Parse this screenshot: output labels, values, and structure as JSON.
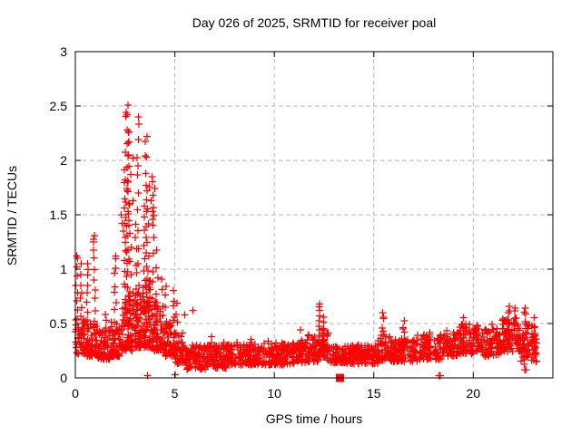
{
  "chart_data": {
    "type": "scatter",
    "title": "Day 026 of 2025, SRMTID for receiver poal",
    "xlabel": "GPS time / hours",
    "ylabel": "SRMTID / TECUs",
    "xlim": [
      0,
      24
    ],
    "ylim": [
      0,
      3
    ],
    "x_ticks": [
      0,
      5,
      10,
      15,
      20
    ],
    "x_tick_labels": [
      "0",
      "5",
      "10",
      "15",
      "20"
    ],
    "y_ticks": [
      0,
      0.5,
      1,
      1.5,
      2,
      2.5,
      3
    ],
    "y_tick_labels": [
      "0",
      "0.5",
      "1",
      "1.5",
      "2",
      "2.5",
      "3"
    ],
    "grid": true,
    "legend": "none",
    "marker": "plus",
    "marker_color": "#ff0000",
    "grid_color": "#b3b3b3",
    "border_color": "#000000",
    "background_color": "#ffffff",
    "notable_points": [
      [
        2.64,
        2.51
      ],
      [
        2.56,
        2.44
      ],
      [
        2.6,
        2.42
      ],
      [
        3.17,
        2.4
      ],
      [
        2.66,
        2.26
      ],
      [
        2.7,
        2.17
      ],
      [
        3.6,
        2.22
      ],
      [
        2.65,
        2.04
      ],
      [
        2.9,
        2.02
      ],
      [
        3.58,
        2.03
      ],
      [
        3.15,
        1.95
      ],
      [
        2.78,
        1.87
      ],
      [
        3.86,
        1.85
      ],
      [
        2.65,
        1.8
      ],
      [
        3.73,
        1.76
      ],
      [
        2.6,
        1.74
      ],
      [
        4.0,
        1.74
      ],
      [
        3.17,
        1.7
      ],
      [
        2.9,
        1.63
      ],
      [
        3.82,
        1.63
      ],
      [
        3.87,
        1.53
      ],
      [
        2.64,
        1.53
      ],
      [
        3.95,
        1.49
      ],
      [
        3.87,
        1.46
      ],
      [
        0.95,
        1.31
      ],
      [
        0.92,
        1.25
      ],
      [
        2.3,
        1.5
      ],
      [
        2.35,
        1.42
      ],
      [
        2.42,
        1.35
      ],
      [
        0.3,
        1.05
      ],
      [
        0.07,
        1.12
      ],
      [
        0.62,
        1.05
      ],
      [
        2.02,
        1.12
      ],
      [
        5.9,
        0.62
      ],
      [
        5.5,
        0.58
      ],
      [
        12.27,
        0.68
      ],
      [
        15.45,
        0.6
      ],
      [
        21.8,
        0.66
      ],
      [
        22.1,
        0.64
      ],
      [
        22.6,
        0.64
      ],
      [
        5.02,
        0.03
      ],
      [
        3.62,
        0.02
      ],
      [
        18.28,
        0.02
      ],
      [
        18.34,
        0.02
      ]
    ],
    "special_markers": [
      {
        "type": "filled-square",
        "x": 13.3,
        "y": 0.0
      }
    ],
    "spike_columns_schema": [
      "x",
      "ymin",
      "ymax",
      "count"
    ],
    "spike_columns": [
      [
        0.07,
        0.45,
        1.1,
        9
      ],
      [
        0.3,
        0.4,
        0.95,
        8
      ],
      [
        0.6,
        0.45,
        1.02,
        8
      ],
      [
        0.95,
        0.45,
        1.28,
        10
      ],
      [
        1.5,
        0.33,
        0.58,
        5
      ],
      [
        2.0,
        0.45,
        1.1,
        9
      ],
      [
        2.5,
        0.6,
        1.9,
        12
      ],
      [
        2.56,
        0.7,
        2.4,
        16
      ],
      [
        2.65,
        0.75,
        2.25,
        15
      ],
      [
        2.75,
        0.55,
        1.6,
        9
      ],
      [
        3.05,
        0.6,
        1.4,
        8
      ],
      [
        3.15,
        0.7,
        2.35,
        11
      ],
      [
        3.45,
        0.6,
        1.6,
        9
      ],
      [
        3.55,
        0.65,
        2.15,
        13
      ],
      [
        3.65,
        0.55,
        1.7,
        9
      ],
      [
        3.9,
        0.45,
        1.82,
        11
      ],
      [
        4.1,
        0.4,
        1.15,
        7
      ],
      [
        4.35,
        0.35,
        0.9,
        6
      ],
      [
        4.55,
        0.3,
        0.85,
        6
      ],
      [
        4.95,
        0.28,
        0.8,
        8
      ],
      [
        5.1,
        0.22,
        0.7,
        6
      ],
      [
        6.85,
        0.15,
        0.4,
        5
      ],
      [
        7.45,
        0.12,
        0.33,
        5
      ],
      [
        8.8,
        0.15,
        0.37,
        5
      ],
      [
        9.7,
        0.14,
        0.35,
        4
      ],
      [
        11.35,
        0.16,
        0.42,
        5
      ],
      [
        12.25,
        0.3,
        0.66,
        8
      ],
      [
        12.45,
        0.27,
        0.54,
        7
      ],
      [
        15.45,
        0.24,
        0.58,
        7
      ],
      [
        16.5,
        0.24,
        0.52,
        8
      ],
      [
        17.8,
        0.2,
        0.4,
        5
      ],
      [
        18.7,
        0.24,
        0.44,
        5
      ],
      [
        19.5,
        0.28,
        0.55,
        6
      ],
      [
        20.9,
        0.25,
        0.48,
        5
      ],
      [
        21.8,
        0.33,
        0.63,
        7
      ],
      [
        22.1,
        0.33,
        0.62,
        6
      ],
      [
        22.6,
        0.05,
        0.62,
        13
      ],
      [
        23.1,
        0.22,
        0.54,
        6
      ]
    ],
    "baseline_segments_schema": [
      "x0",
      "x1",
      "ymin",
      "ymax",
      "count",
      "skew"
    ],
    "baseline_segments": [
      [
        0.0,
        0.5,
        0.22,
        0.55,
        48,
        1.8
      ],
      [
        0.5,
        1.1,
        0.2,
        0.5,
        58,
        1.8
      ],
      [
        1.1,
        1.8,
        0.17,
        0.45,
        55,
        1.8
      ],
      [
        1.8,
        2.3,
        0.2,
        0.52,
        55,
        1.8
      ],
      [
        2.3,
        2.9,
        0.25,
        0.75,
        68,
        1.6
      ],
      [
        2.9,
        3.3,
        0.28,
        0.8,
        58,
        1.6
      ],
      [
        3.3,
        3.8,
        0.28,
        0.9,
        68,
        1.6
      ],
      [
        3.8,
        4.3,
        0.25,
        0.7,
        58,
        1.7
      ],
      [
        4.3,
        5.0,
        0.2,
        0.55,
        60,
        1.8
      ],
      [
        5.0,
        5.6,
        0.13,
        0.42,
        48,
        1.7
      ],
      [
        5.6,
        6.6,
        0.08,
        0.3,
        85,
        1.4
      ],
      [
        6.6,
        7.6,
        0.09,
        0.3,
        85,
        1.4
      ],
      [
        7.6,
        9.0,
        0.12,
        0.33,
        110,
        1.5
      ],
      [
        9.0,
        10.5,
        0.12,
        0.32,
        115,
        1.5
      ],
      [
        10.5,
        11.6,
        0.13,
        0.33,
        85,
        1.5
      ],
      [
        11.6,
        12.2,
        0.15,
        0.4,
        50,
        1.5
      ],
      [
        12.2,
        12.7,
        0.18,
        0.45,
        45,
        1.4
      ],
      [
        12.7,
        13.5,
        0.14,
        0.3,
        60,
        1.5
      ],
      [
        13.5,
        15.2,
        0.13,
        0.3,
        130,
        1.5
      ],
      [
        15.2,
        15.9,
        0.16,
        0.4,
        55,
        1.5
      ],
      [
        15.9,
        17.2,
        0.15,
        0.36,
        100,
        1.5
      ],
      [
        17.2,
        18.4,
        0.17,
        0.4,
        90,
        1.4
      ],
      [
        18.4,
        19.3,
        0.2,
        0.42,
        65,
        1.4
      ],
      [
        19.3,
        20.4,
        0.22,
        0.5,
        85,
        1.3
      ],
      [
        20.4,
        21.4,
        0.2,
        0.46,
        70,
        1.4
      ],
      [
        21.4,
        22.4,
        0.24,
        0.55,
        80,
        1.3
      ],
      [
        22.4,
        23.2,
        0.15,
        0.5,
        60,
        1.3
      ]
    ]
  }
}
